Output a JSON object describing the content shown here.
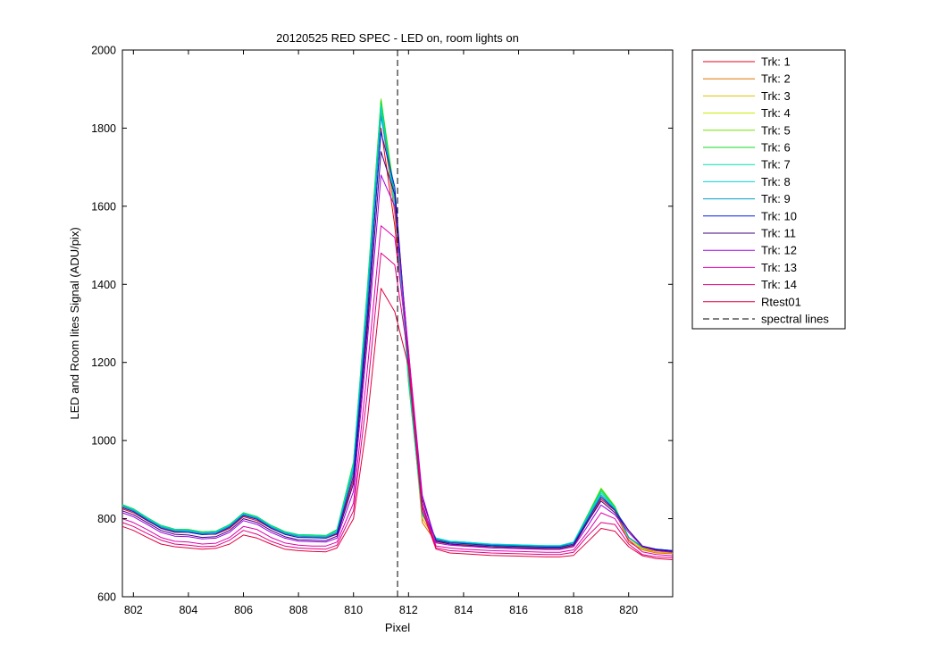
{
  "chart_data": {
    "type": "line",
    "title": "20120525 RED SPEC - LED on, room lights on",
    "xlabel": "Pixel",
    "ylabel": "LED and Room lites Signal (ADU/pix)",
    "xlim": [
      801.6,
      821.6
    ],
    "ylim": [
      600,
      2000
    ],
    "x_ticks": [
      802,
      804,
      806,
      808,
      810,
      812,
      814,
      816,
      818,
      820
    ],
    "y_ticks": [
      600,
      800,
      1000,
      1200,
      1400,
      1600,
      1800,
      2000
    ],
    "grid": false,
    "legend_position": "outside-right",
    "x": [
      801.6,
      802,
      802.5,
      803,
      803.5,
      804,
      804.5,
      805,
      805.5,
      806,
      806.5,
      807,
      807.5,
      808,
      808.5,
      809,
      809.4,
      810,
      810.5,
      811,
      811.5,
      812,
      812.5,
      813,
      813.5,
      814,
      815,
      816,
      817,
      817.5,
      818,
      818.5,
      819,
      819.5,
      820,
      820.5,
      821,
      821.6
    ],
    "series": [
      {
        "name": "Trk: 1",
        "color": "#e8001c",
        "values": [
          825,
          815,
          795,
          775,
          765,
          765,
          760,
          760,
          775,
          805,
          795,
          775,
          760,
          752,
          752,
          750,
          760,
          900,
          1300,
          1800,
          1550,
          1200,
          800,
          745,
          735,
          730,
          728,
          725,
          722,
          722,
          730,
          790,
          850,
          820,
          750,
          725,
          715,
          712
        ]
      },
      {
        "name": "Trk: 2",
        "color": "#e07000",
        "values": [
          830,
          820,
          798,
          778,
          768,
          768,
          762,
          764,
          780,
          810,
          800,
          778,
          762,
          755,
          754,
          752,
          765,
          920,
          1350,
          1840,
          1580,
          1180,
          790,
          740,
          735,
          732,
          728,
          725,
          722,
          722,
          730,
          795,
          860,
          820,
          740,
          720,
          712,
          710
        ]
      },
      {
        "name": "Trk: 3",
        "color": "#e0c000",
        "values": [
          832,
          822,
          800,
          780,
          770,
          770,
          764,
          766,
          782,
          812,
          802,
          780,
          764,
          756,
          756,
          754,
          768,
          930,
          1360,
          1860,
          1600,
          1170,
          800,
          745,
          738,
          735,
          730,
          728,
          725,
          725,
          735,
          800,
          870,
          825,
          745,
          722,
          715,
          712
        ]
      },
      {
        "name": "Trk: 4",
        "color": "#c8e800",
        "values": [
          835,
          824,
          802,
          782,
          772,
          772,
          766,
          768,
          784,
          814,
          804,
          782,
          766,
          758,
          758,
          756,
          770,
          940,
          1380,
          1870,
          1620,
          1160,
          810,
          748,
          740,
          738,
          732,
          730,
          728,
          728,
          738,
          805,
          875,
          830,
          750,
          725,
          718,
          715
        ]
      },
      {
        "name": "Trk: 5",
        "color": "#70e800",
        "values": [
          836,
          825,
          803,
          783,
          773,
          772,
          766,
          768,
          785,
          815,
          805,
          783,
          767,
          759,
          758,
          757,
          772,
          945,
          1390,
          1875,
          1630,
          1150,
          815,
          750,
          742,
          740,
          734,
          732,
          730,
          730,
          740,
          808,
          878,
          832,
          752,
          726,
          720,
          716
        ]
      },
      {
        "name": "Trk: 6",
        "color": "#10d820",
        "values": [
          836,
          825,
          803,
          783,
          773,
          772,
          766,
          768,
          785,
          815,
          805,
          783,
          767,
          759,
          758,
          757,
          772,
          945,
          1385,
          1870,
          1625,
          1150,
          812,
          750,
          742,
          740,
          734,
          732,
          730,
          730,
          740,
          808,
          875,
          830,
          752,
          726,
          720,
          716
        ]
      },
      {
        "name": "Trk: 7",
        "color": "#00e0b0",
        "values": [
          835,
          824,
          802,
          782,
          772,
          771,
          765,
          767,
          784,
          814,
          804,
          782,
          766,
          758,
          757,
          756,
          770,
          940,
          1380,
          1860,
          1610,
          1160,
          810,
          750,
          742,
          740,
          735,
          733,
          731,
          731,
          740,
          805,
          870,
          828,
          752,
          728,
          722,
          718
        ]
      },
      {
        "name": "Trk: 8",
        "color": "#00d8d8",
        "values": [
          834,
          823,
          801,
          781,
          771,
          770,
          764,
          766,
          783,
          813,
          803,
          781,
          765,
          757,
          756,
          755,
          768,
          935,
          1370,
          1850,
          1600,
          1170,
          812,
          750,
          742,
          740,
          735,
          733,
          731,
          731,
          740,
          803,
          865,
          826,
          752,
          728,
          722,
          718
        ]
      },
      {
        "name": "Trk: 9",
        "color": "#00a0c8",
        "values": [
          832,
          821,
          799,
          779,
          769,
          768,
          762,
          764,
          781,
          811,
          801,
          779,
          763,
          755,
          754,
          753,
          765,
          925,
          1350,
          1830,
          1630,
          1180,
          815,
          748,
          740,
          738,
          733,
          731,
          729,
          729,
          738,
          800,
          860,
          824,
          752,
          728,
          722,
          718
        ]
      },
      {
        "name": "Trk: 10",
        "color": "#0020e0",
        "values": [
          828,
          818,
          796,
          776,
          766,
          765,
          759,
          761,
          778,
          808,
          798,
          776,
          760,
          752,
          751,
          750,
          762,
          910,
          1320,
          1790,
          1650,
          1200,
          830,
          745,
          738,
          736,
          731,
          729,
          727,
          727,
          735,
          795,
          855,
          822,
          770,
          730,
          722,
          718
        ]
      },
      {
        "name": "Trk: 11",
        "color": "#400080",
        "values": [
          820,
          810,
          790,
          770,
          760,
          758,
          752,
          754,
          770,
          800,
          790,
          770,
          754,
          746,
          745,
          744,
          755,
          890,
          1280,
          1740,
          1630,
          1220,
          850,
          742,
          735,
          733,
          728,
          726,
          724,
          724,
          732,
          790,
          845,
          815,
          770,
          730,
          720,
          716
        ]
      },
      {
        "name": "Trk: 12",
        "color": "#a000e0",
        "values": [
          815,
          805,
          785,
          765,
          755,
          754,
          748,
          750,
          765,
          795,
          785,
          765,
          750,
          742,
          741,
          740,
          750,
          870,
          1250,
          1680,
          1600,
          1230,
          860,
          738,
          732,
          730,
          725,
          723,
          721,
          721,
          728,
          780,
          835,
          810,
          765,
          728,
          718,
          714
        ]
      },
      {
        "name": "Trk: 13",
        "color": "#e000b0",
        "values": [
          800,
          790,
          772,
          752,
          742,
          740,
          735,
          737,
          752,
          780,
          772,
          752,
          738,
          732,
          730,
          730,
          740,
          840,
          1180,
          1550,
          1520,
          1230,
          840,
          730,
          725,
          722,
          718,
          716,
          714,
          714,
          720,
          765,
          815,
          800,
          745,
          715,
          708,
          705
        ]
      },
      {
        "name": "Trk: 14",
        "color": "#e00080",
        "values": [
          790,
          780,
          762,
          745,
          735,
          732,
          728,
          730,
          745,
          770,
          760,
          742,
          730,
          725,
          723,
          722,
          732,
          820,
          1120,
          1480,
          1450,
          1210,
          830,
          725,
          718,
          716,
          712,
          710,
          708,
          708,
          714,
          755,
          790,
          785,
          735,
          708,
          702,
          700
        ]
      },
      {
        "name": "Rtest01",
        "color": "#e00040",
        "values": [
          780,
          770,
          752,
          735,
          728,
          725,
          722,
          724,
          735,
          758,
          750,
          735,
          722,
          718,
          716,
          715,
          725,
          800,
          1050,
          1390,
          1330,
          1190,
          820,
          722,
          712,
          710,
          706,
          704,
          702,
          702,
          706,
          740,
          775,
          768,
          728,
          705,
          698,
          695
        ]
      }
    ],
    "reference_lines": [
      {
        "name": "spectral lines",
        "x": 811.6,
        "style": "dashed",
        "color": "#000000"
      }
    ]
  }
}
